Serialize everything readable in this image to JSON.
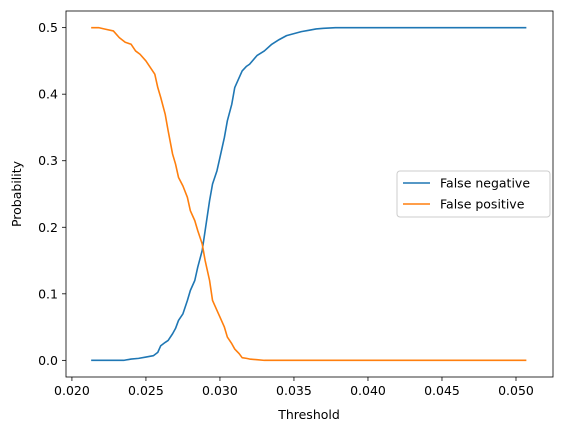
{
  "chart_data": {
    "type": "line",
    "title": "",
    "xlabel": "Threshold",
    "ylabel": "Probability",
    "xlim": [
      0.0196,
      0.0525
    ],
    "ylim": [
      -0.025,
      0.525
    ],
    "xticks": [
      0.02,
      0.025,
      0.03,
      0.035,
      0.04,
      0.045,
      0.05
    ],
    "xtick_labels": [
      "0.020",
      "0.025",
      "0.030",
      "0.035",
      "0.040",
      "0.045",
      "0.050"
    ],
    "yticks": [
      0.0,
      0.1,
      0.2,
      0.3,
      0.4,
      0.5
    ],
    "ytick_labels": [
      "0.0",
      "0.1",
      "0.2",
      "0.3",
      "0.4",
      "0.5"
    ],
    "grid": false,
    "legend_position": "center-right",
    "series": [
      {
        "name": "False negative",
        "color": "#1f77b4",
        "x": [
          0.0213,
          0.0225,
          0.0235,
          0.024,
          0.0245,
          0.025,
          0.0255,
          0.0258,
          0.026,
          0.0263,
          0.0265,
          0.0268,
          0.027,
          0.0272,
          0.0275,
          0.0278,
          0.028,
          0.0283,
          0.0285,
          0.0288,
          0.029,
          0.0293,
          0.0295,
          0.0298,
          0.03,
          0.0303,
          0.0305,
          0.0308,
          0.031,
          0.0313,
          0.0315,
          0.0318,
          0.032,
          0.0325,
          0.033,
          0.0335,
          0.034,
          0.0345,
          0.035,
          0.0355,
          0.036,
          0.0365,
          0.037,
          0.0378,
          0.04,
          0.045,
          0.0507
        ],
        "y": [
          0.0,
          0.0,
          0.0,
          0.002,
          0.003,
          0.005,
          0.007,
          0.012,
          0.022,
          0.027,
          0.03,
          0.04,
          0.048,
          0.06,
          0.07,
          0.09,
          0.105,
          0.12,
          0.14,
          0.165,
          0.195,
          0.24,
          0.265,
          0.285,
          0.305,
          0.335,
          0.36,
          0.385,
          0.41,
          0.425,
          0.435,
          0.442,
          0.445,
          0.458,
          0.465,
          0.475,
          0.482,
          0.488,
          0.491,
          0.494,
          0.496,
          0.498,
          0.499,
          0.5,
          0.5,
          0.5,
          0.5
        ]
      },
      {
        "name": "False positive",
        "color": "#ff7f0e",
        "x": [
          0.0213,
          0.0218,
          0.0222,
          0.0228,
          0.0232,
          0.0236,
          0.024,
          0.0243,
          0.0246,
          0.025,
          0.0253,
          0.0256,
          0.0258,
          0.026,
          0.0263,
          0.0265,
          0.0268,
          0.027,
          0.0272,
          0.0275,
          0.0278,
          0.028,
          0.0283,
          0.0285,
          0.0288,
          0.029,
          0.0293,
          0.0295,
          0.0298,
          0.03,
          0.0303,
          0.0305,
          0.0308,
          0.031,
          0.0313,
          0.0315,
          0.0318,
          0.032,
          0.0325,
          0.033,
          0.034,
          0.036,
          0.04,
          0.045,
          0.0507
        ],
        "y": [
          0.5,
          0.5,
          0.498,
          0.495,
          0.485,
          0.478,
          0.475,
          0.465,
          0.46,
          0.45,
          0.44,
          0.43,
          0.41,
          0.395,
          0.37,
          0.345,
          0.31,
          0.295,
          0.275,
          0.262,
          0.245,
          0.225,
          0.21,
          0.195,
          0.175,
          0.15,
          0.12,
          0.09,
          0.075,
          0.065,
          0.05,
          0.035,
          0.025,
          0.017,
          0.01,
          0.004,
          0.003,
          0.002,
          0.001,
          0.0,
          0.0,
          0.0,
          0.0,
          0.0,
          0.0
        ]
      }
    ]
  }
}
